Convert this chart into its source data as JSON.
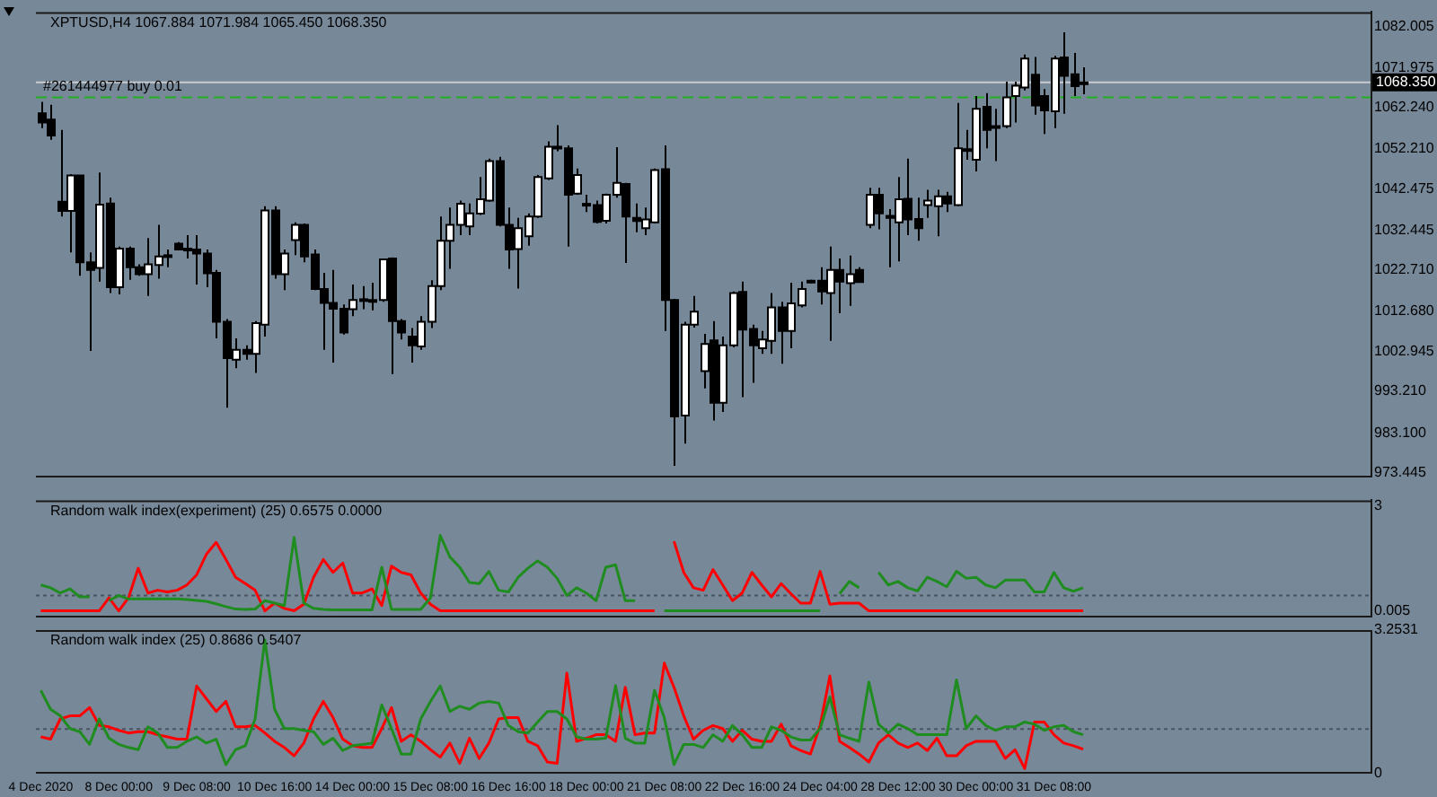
{
  "chart_data": [
    {
      "type": "candlestick",
      "title": "XPTUSD,H4 1067.884 1071.984 1065.450 1068.350",
      "tick_labels": "y",
      "categories": [
        null,
        null,
        null,
        null,
        null,
        null,
        null,
        null,
        null,
        null,
        null,
        null,
        null,
        null,
        null,
        null,
        null,
        null,
        null,
        null,
        null,
        null,
        null,
        null,
        null,
        null,
        null,
        null,
        null,
        null,
        null,
        null,
        null,
        null,
        null,
        null,
        null,
        null,
        null,
        null,
        null,
        null,
        null,
        null,
        null,
        null,
        null,
        null,
        null,
        null,
        null,
        null,
        null,
        null,
        null,
        null,
        null,
        null,
        null,
        null,
        null,
        null,
        null,
        null,
        null,
        null,
        null,
        null,
        null,
        null,
        null,
        null,
        null,
        null,
        null,
        null,
        null,
        null,
        null,
        null,
        null,
        null,
        null,
        null,
        null,
        null,
        null,
        null,
        null,
        null,
        null,
        null,
        null,
        null,
        null,
        null,
        null,
        null,
        null,
        null,
        null,
        null,
        null,
        null,
        null,
        null,
        null,
        null,
        null,
        null,
        null,
        null,
        null,
        null,
        null,
        null,
        null,
        null,
        null,
        null,
        null,
        null,
        null,
        null,
        null,
        null,
        null,
        null,
        null,
        null,
        null,
        null,
        null,
        null,
        null,
        null,
        null
      ],
      "ohlc": [
        [
          1060.8,
          1063.6,
          1057.2,
          1058.6
        ],
        [
          1059.3,
          1062.9,
          1054.4,
          1055.4
        ],
        [
          1039.3,
          1056.8,
          1035.7,
          1037.1
        ],
        [
          1037.1,
          1046.0,
          1027.0,
          1045.7
        ],
        [
          1045.7,
          1045.7,
          1021.3,
          1024.6
        ],
        [
          1024.6,
          1027.0,
          1003.0,
          1022.7
        ],
        [
          1023.2,
          1046.4,
          1019.9,
          1038.6
        ],
        [
          1038.9,
          1040.3,
          1017.1,
          1018.5
        ],
        [
          1018.5,
          1028.4,
          1016.8,
          1027.9
        ],
        [
          1027.9,
          1028.4,
          1020.3,
          1023.4
        ],
        [
          1023.4,
          1024.1,
          1021.3,
          1021.7
        ],
        [
          1021.7,
          1030.5,
          1016.4,
          1024.1
        ],
        [
          1023.9,
          1033.7,
          1020.6,
          1026.0
        ],
        [
          1026.0,
          1027.7,
          1023.4,
          1026.3
        ],
        [
          1029.1,
          1029.5,
          1027.7,
          1027.7
        ],
        [
          1027.9,
          1031.2,
          1025.5,
          1027.6
        ],
        [
          1027.7,
          1031.2,
          1019.2,
          1026.7
        ],
        [
          1026.7,
          1027.7,
          1018.5,
          1021.9
        ],
        [
          1022.0,
          1022.7,
          1006.1,
          1010.1
        ],
        [
          1010.1,
          1010.8,
          989.2,
          1001.3
        ],
        [
          1000.9,
          1006.1,
          998.8,
          1003.3
        ],
        [
          1003.3,
          1004.4,
          1000.9,
          1002.3
        ],
        [
          1002.3,
          1010.3,
          997.7,
          1009.8
        ],
        [
          1009.4,
          1038.2,
          1006.5,
          1037.2
        ],
        [
          1037.2,
          1038.2,
          1020.6,
          1021.7
        ],
        [
          1021.7,
          1027.7,
          1017.8,
          1026.7
        ],
        [
          1030.0,
          1034.3,
          1026.3,
          1033.7
        ],
        [
          1033.7,
          1034.0,
          1024.6,
          1026.0
        ],
        [
          1026.5,
          1027.7,
          1017.8,
          1018.1
        ],
        [
          1018.1,
          1022.0,
          1003.3,
          1014.7
        ],
        [
          1014.7,
          1022.7,
          1000.2,
          1013.3
        ],
        [
          1013.3,
          1014.3,
          1007.0,
          1007.5
        ],
        [
          1013.2,
          1019.2,
          1011.5,
          1015.4
        ],
        [
          1015.4,
          1018.8,
          1013.2,
          1015.6
        ],
        [
          1015.4,
          1019.6,
          1012.9,
          1015.2
        ],
        [
          1015.4,
          1025.5,
          1015.0,
          1025.3
        ],
        [
          1025.5,
          1025.8,
          997.4,
          1010.3
        ],
        [
          1010.3,
          1010.8,
          1005.8,
          1007.5
        ],
        [
          1006.5,
          1008.6,
          1000.2,
          1004.4
        ],
        [
          1004.1,
          1011.5,
          1003.3,
          1010.1
        ],
        [
          1010.1,
          1020.2,
          1008.6,
          1018.8
        ],
        [
          1018.8,
          1035.7,
          1017.8,
          1029.8
        ],
        [
          1029.8,
          1037.9,
          1023.0,
          1033.7
        ],
        [
          1033.7,
          1039.6,
          1031.2,
          1038.8
        ],
        [
          1033.3,
          1038.9,
          1031.2,
          1036.5
        ],
        [
          1036.4,
          1045.3,
          1036.1,
          1039.9
        ],
        [
          1039.6,
          1049.8,
          1039.3,
          1049.2
        ],
        [
          1049.2,
          1050.2,
          1033.3,
          1033.7
        ],
        [
          1033.7,
          1037.9,
          1023.0,
          1027.7
        ],
        [
          1027.8,
          1035.4,
          1018.2,
          1032.9
        ],
        [
          1030.9,
          1036.5,
          1028.6,
          1035.7
        ],
        [
          1035.7,
          1045.8,
          1035.4,
          1045.3
        ],
        [
          1045.0,
          1054.0,
          1044.6,
          1052.7
        ],
        [
          1052.7,
          1057.9,
          1051.6,
          1052.5
        ],
        [
          1052.3,
          1053.0,
          1028.4,
          1041.0
        ],
        [
          1041.3,
          1047.4,
          1041.0,
          1045.8
        ],
        [
          1038.6,
          1041.0,
          1036.8,
          1038.8
        ],
        [
          1038.5,
          1039.6,
          1034.0,
          1034.4
        ],
        [
          1034.7,
          1041.3,
          1034.0,
          1041.0
        ],
        [
          1041.0,
          1052.6,
          1040.3,
          1043.9
        ],
        [
          1043.6,
          1043.9,
          1024.4,
          1035.7
        ],
        [
          1035.4,
          1038.9,
          1031.9,
          1034.6
        ],
        [
          1032.9,
          1037.9,
          1031.2,
          1035.0
        ],
        [
          1034.3,
          1047.4,
          1034.0,
          1047.0
        ],
        [
          1047.2,
          1053.0,
          1007.9,
          1015.4
        ],
        [
          1015.4,
          1015.7,
          975.1,
          987.1
        ],
        [
          987.3,
          1010.1,
          980.5,
          1009.4
        ],
        [
          1009.4,
          1016.4,
          1008.7,
          1012.6
        ],
        [
          998.1,
          1007.2,
          993.9,
          1004.7
        ],
        [
          1005.6,
          1010.3,
          986.1,
          990.4
        ],
        [
          990.4,
          1006.5,
          988.2,
          1004.4
        ],
        [
          1004.4,
          1017.5,
          1003.9,
          1017.1
        ],
        [
          1017.4,
          1019.9,
          991.8,
          1008.2
        ],
        [
          1008.4,
          1009.4,
          995.3,
          1004.4
        ],
        [
          1003.7,
          1007.9,
          1002.3,
          1005.8
        ],
        [
          1005.5,
          1017.1,
          1002.3,
          1013.6
        ],
        [
          1013.6,
          1015.0,
          999.9,
          1007.9
        ],
        [
          1007.9,
          1019.6,
          1003.7,
          1014.6
        ],
        [
          1014.1,
          1019.9,
          1013.6,
          1018.1
        ],
        [
          1020.0,
          1020.3,
          1019.5,
          1020.1
        ],
        [
          1020.1,
          1023.4,
          1014.3,
          1017.5
        ],
        [
          1017.1,
          1028.4,
          1005.5,
          1022.7
        ],
        [
          1022.7,
          1025.5,
          1012.2,
          1019.9
        ],
        [
          1019.5,
          1026.2,
          1014.0,
          1021.7
        ],
        [
          1022.7,
          1023.4,
          1019.6,
          1019.8
        ],
        [
          1033.7,
          1042.7,
          1032.9,
          1041.0
        ],
        [
          1041.0,
          1042.7,
          1032.6,
          1036.5
        ],
        [
          1035.9,
          1037.5,
          1023.4,
          1035.4
        ],
        [
          1034.3,
          1045.3,
          1024.8,
          1039.9
        ],
        [
          1040.0,
          1049.8,
          1031.2,
          1035.0
        ],
        [
          1035.1,
          1040.3,
          1029.8,
          1032.9
        ],
        [
          1038.5,
          1042.2,
          1035.4,
          1039.6
        ],
        [
          1038.2,
          1042.2,
          1030.9,
          1040.6
        ],
        [
          1040.6,
          1041.7,
          1036.8,
          1038.9
        ],
        [
          1038.5,
          1063.3,
          1038.2,
          1052.3
        ],
        [
          1052.0,
          1056.8,
          1049.5,
          1052.1
        ],
        [
          1049.5,
          1065.0,
          1046.7,
          1061.9
        ],
        [
          1062.4,
          1065.7,
          1052.3,
          1056.8
        ],
        [
          1057.7,
          1061.9,
          1049.2,
          1057.6
        ],
        [
          1057.7,
          1068.5,
          1057.2,
          1064.7
        ],
        [
          1065.0,
          1068.5,
          1058.6,
          1067.5
        ],
        [
          1067.1,
          1075.1,
          1066.4,
          1074.1
        ],
        [
          1070.2,
          1074.5,
          1060.5,
          1062.7
        ],
        [
          1065.0,
          1066.7,
          1055.8,
          1061.5
        ],
        [
          1061.3,
          1074.8,
          1057.2,
          1074.1
        ],
        [
          1074.4,
          1080.5,
          1060.7,
          1069.9
        ],
        [
          1070.3,
          1075.5,
          1065.0,
          1067.4
        ],
        [
          1067.884,
          1071.984,
          1065.45,
          1068.35
        ],
        null,
        null,
        null,
        null,
        null,
        null,
        null,
        null,
        null,
        null,
        null,
        null,
        null,
        null,
        null,
        null,
        null,
        null,
        null,
        null,
        null,
        null,
        null,
        null,
        null,
        null,
        null,
        null,
        null
      ],
      "ylim": [
        972.6,
        1085.4
      ],
      "yticks": [
        1082.005,
        1071.975,
        {
          "value": 1062.24,
          "label": "1062.240"
        },
        {
          "value": 1052.21,
          "label": "1052.210"
        },
        1042.475,
        1032.445,
        {
          "value": 1022.71,
          "label": "1022.710"
        },
        {
          "value": 1012.68,
          "label": "1012.680"
        },
        1002.945,
        {
          "value": 993.21,
          "label": "993.210"
        },
        {
          "value": 983.1,
          "label": "983.100"
        },
        973.445
      ],
      "ref_lines": [
        {
          "axis": "y",
          "value": 1068.35,
          "label": "1068.350",
          "color": "#c8ccd2",
          "line_style": "solid"
        },
        {
          "axis": "y",
          "value": 1064.7,
          "label": "#261444977 buy 0.01",
          "color": "#22b022",
          "line_style": "dashed"
        }
      ]
    },
    {
      "type": "line",
      "title": "Random walk index(experiment) (25) 0.6575 0.0000",
      "tick_labels": "y",
      "categories": [
        null,
        null,
        null,
        null,
        null,
        null,
        null,
        null,
        null,
        null,
        null,
        null,
        null,
        null,
        null,
        null,
        null,
        null,
        null,
        null,
        null,
        null,
        null,
        null,
        null,
        null,
        null,
        null,
        null,
        null,
        null,
        null,
        null,
        null,
        null,
        null,
        null,
        null,
        null,
        null,
        null,
        null,
        null,
        null,
        null,
        null,
        null,
        null,
        null,
        null,
        null,
        null,
        null,
        null,
        null,
        null,
        null,
        null,
        null,
        null,
        null,
        null,
        null,
        null,
        null,
        null,
        null,
        null,
        null,
        null,
        null,
        null,
        null,
        null,
        null,
        null,
        null,
        null,
        null,
        null,
        null,
        null,
        null,
        null,
        null,
        null,
        null,
        null,
        null,
        null,
        null,
        null,
        null,
        null,
        null,
        null,
        null,
        null,
        null,
        null,
        null,
        null,
        null,
        null,
        null,
        null,
        null,
        null,
        null,
        null,
        null,
        null,
        null,
        null,
        null,
        null,
        null,
        null,
        null,
        null,
        null,
        null,
        null,
        null,
        null,
        null,
        null,
        null,
        null,
        null,
        null,
        null,
        null,
        null,
        null,
        null,
        null
      ],
      "series": [
        {
          "color": "#1e8c1e",
          "values": [
            0.74,
            0.66,
            0.51,
            0.63,
            0.4,
            0.4,
            null,
            0.29,
            0.44,
            0.34,
            0.34,
            0.34,
            0.34,
            0.34,
            0.34,
            0.32,
            0.3,
            0.27,
            0.2,
            0.12,
            0.05,
            0.04,
            0.05,
            0.29,
            0.22,
            0.15,
            2.1,
            0.22,
            0.07,
            0.04,
            0.03,
            0.03,
            0.03,
            0.03,
            0.03,
            1.25,
            0.04,
            0.04,
            0.04,
            0.04,
            0.37,
            2.16,
            1.54,
            1.25,
            0.81,
            0.78,
            1.13,
            0.59,
            0.54,
            0.96,
            1.22,
            1.43,
            1.25,
            0.93,
            0.44,
            0.66,
            0.51,
            0.29,
            1.25,
            1.32,
            0.29,
            0.29,
            null,
            null,
            0,
            0,
            0,
            0,
            0,
            0,
            0,
            0,
            0,
            0,
            0,
            0,
            0,
            0,
            0,
            0,
            0,
            null,
            0.49,
            0.84,
            0.66,
            null,
            1.1,
            0.74,
            0.84,
            0.66,
            0.57,
            0.96,
            0.84,
            0.69,
            1.13,
            0.93,
            0.96,
            0.74,
            0.66,
            0.88,
            0.88,
            0.88,
            0.54,
            0.54,
            1.1,
            0.66,
            0.56,
            0.66,
            null,
            null,
            null,
            null,
            null,
            null,
            null,
            null,
            null,
            null,
            null,
            null,
            null,
            null,
            null,
            null,
            null,
            null,
            null,
            null,
            null,
            null,
            null,
            null,
            null,
            null,
            null,
            null,
            null
          ]
        },
        {
          "color": "#ff0000",
          "values": [
            0,
            0,
            0,
            0,
            0,
            0,
            0,
            0.37,
            0,
            0.37,
            1.22,
            0.51,
            0.59,
            0.54,
            0.59,
            0.74,
            1.03,
            1.62,
            1.96,
            1.47,
            0.96,
            0.78,
            0.59,
            0,
            0.22,
            0.07,
            0,
            0.19,
            0.96,
            1.47,
            1.1,
            1.37,
            0.51,
            0.51,
            0.63,
            0.15,
            1.28,
            1.1,
            1.03,
            0.51,
            0.19,
            0,
            0,
            0,
            0,
            0,
            0,
            0,
            0,
            0,
            0,
            0,
            0,
            0,
            0,
            0,
            0,
            0,
            0,
            0,
            0,
            0,
            0,
            0,
            null,
            1.99,
            1.1,
            0.66,
            0.59,
            1.18,
            0.74,
            0.29,
            0.51,
            1.1,
            0.74,
            0.4,
            0.78,
            0.49,
            0.22,
            0.22,
            1.13,
            0.19,
            0.22,
            0.22,
            0.22,
            0,
            0,
            0,
            0,
            0,
            0,
            0,
            0,
            0,
            0,
            0,
            0,
            0,
            0,
            0,
            0,
            0,
            0,
            0,
            0,
            0,
            0,
            0,
            null,
            null,
            null,
            null,
            null,
            null,
            null,
            null,
            null,
            null,
            null,
            null,
            null,
            null,
            null,
            null,
            null,
            null,
            null,
            null,
            null,
            null,
            null,
            null,
            null,
            null,
            null,
            null,
            null
          ]
        }
      ],
      "ylim": [
        -0.15,
        3.16
      ],
      "yticks": [
        3,
        0.005
      ],
      "ref_lines": [
        {
          "axis": "y",
          "value": 0.44,
          "color": "#4a5460",
          "line_style": "dotted"
        }
      ]
    },
    {
      "type": "line",
      "title": "Random walk index (25) 0.8686 0.5407",
      "categories": [
        "4 Dec 2020",
        null,
        null,
        null,
        null,
        null,
        null,
        null,
        "8 Dec 00:00",
        null,
        null,
        null,
        null,
        null,
        null,
        null,
        "9 Dec 08:00",
        null,
        null,
        null,
        null,
        null,
        null,
        null,
        "10 Dec 16:00",
        null,
        null,
        null,
        null,
        null,
        null,
        null,
        "14 Dec 00:00",
        null,
        null,
        null,
        null,
        null,
        null,
        null,
        "15 Dec 08:00",
        null,
        null,
        null,
        null,
        null,
        null,
        null,
        "16 Dec 16:00",
        null,
        null,
        null,
        null,
        null,
        null,
        null,
        "18 Dec 00:00",
        null,
        null,
        null,
        null,
        null,
        null,
        null,
        "21 Dec 08:00",
        null,
        null,
        null,
        null,
        null,
        null,
        null,
        "22 Dec 16:00",
        null,
        null,
        null,
        null,
        null,
        null,
        null,
        "24 Dec 04:00",
        null,
        null,
        null,
        null,
        null,
        null,
        null,
        "28 Dec 12:00",
        null,
        null,
        null,
        null,
        null,
        null,
        null,
        "30 Dec 00:00",
        null,
        null,
        null,
        null,
        null,
        null,
        null,
        "31 Dec 08:00",
        null,
        null,
        null,
        null,
        null,
        null,
        null,
        null,
        null,
        null,
        null,
        null,
        null,
        null,
        null,
        null,
        null,
        null,
        null,
        null,
        null,
        null,
        null,
        null,
        null,
        null,
        null,
        null,
        null,
        null,
        null,
        null
      ],
      "series": [
        {
          "color": "#1e8c1e",
          "values": [
            1.88,
            1.45,
            1.3,
            1.01,
            0.94,
            0.65,
            1.23,
            0.79,
            0.65,
            0.58,
            0.53,
            1.05,
            0.91,
            0.58,
            0.58,
            0.72,
            0.82,
            0.68,
            0.77,
            0.19,
            0.53,
            0.62,
            1.23,
            3.03,
            1.45,
            1.01,
            1.01,
            0.97,
            0.94,
            0.65,
            0.79,
            0.51,
            0.62,
            0.65,
            0.68,
            1.55,
            1.01,
            0.43,
            0.43,
            1.23,
            1.63,
            1.98,
            1.4,
            1.52,
            1.45,
            1.59,
            1.63,
            1.59,
            1.08,
            0.94,
            0.91,
            1.16,
            1.4,
            1.4,
            1.23,
            0.82,
            0.77,
            0.77,
            0.79,
            1.99,
            0.79,
            0.68,
            0.68,
            1.88,
            1.26,
            0.19,
            0.65,
            0.65,
            0.58,
            0.87,
            0.72,
            1.08,
            0.87,
            0.58,
            0.58,
            1.05,
            0.97,
            0.82,
            0.75,
            0.75,
            1.01,
            1.73,
            0.87,
            0.79,
            0.72,
            2.07,
            1.11,
            0.91,
            1.11,
            1.01,
            0.87,
            0.87,
            0.87,
            0.87,
            2.12,
            1.01,
            1.3,
            1.08,
            0.97,
            1.05,
            1.05,
            1.16,
            1.11,
            0.97,
            1.05,
            1.08,
            0.94,
            0.87,
            null,
            null,
            null,
            null,
            null,
            null,
            null,
            null,
            null,
            null,
            null,
            null,
            null,
            null,
            null,
            null,
            null,
            null,
            null,
            null,
            null,
            null,
            null,
            null,
            null,
            null,
            null,
            null,
            null
          ]
        },
        {
          "color": "#ff0000",
          "values": [
            0.82,
            0.77,
            1.23,
            1.3,
            1.3,
            1.49,
            1.08,
            1.05,
            0.97,
            0.91,
            0.94,
            0.94,
            0.87,
            0.82,
            0.77,
            0.77,
            1.98,
            1.69,
            1.4,
            1.63,
            1.05,
            1.05,
            1.08,
            0.91,
            0.72,
            0.58,
            0.39,
            0.68,
            1.23,
            1.63,
            1.26,
            0.77,
            0.62,
            0.58,
            0.58,
            1.01,
            1.49,
            0.72,
            0.87,
            0.72,
            0.53,
            0.36,
            0.68,
            0.22,
            0.79,
            0.33,
            0.68,
            1.23,
            1.26,
            1.26,
            0.72,
            0.62,
            0.25,
            0.22,
            2.27,
            0.72,
            0.79,
            0.87,
            0.87,
            0.72,
            1.95,
            0.87,
            0.91,
            0.91,
            2.5,
            1.95,
            1.3,
            0.77,
            0.97,
            1.08,
            1.01,
            0.72,
            0.97,
            0.77,
            0.72,
            0.72,
            1.11,
            0.62,
            0.51,
            0.43,
            1.08,
            2.21,
            0.72,
            0.58,
            0.43,
            0.25,
            0.68,
            0.87,
            0.68,
            0.58,
            0.68,
            0.51,
            0.79,
            0.39,
            0.39,
            0.62,
            0.72,
            0.72,
            0.72,
            0.33,
            0.53,
            0.1,
            1.16,
            1.16,
            0.87,
            0.68,
            0.62,
            0.54,
            null,
            null,
            null,
            null,
            null,
            null,
            null,
            null,
            null,
            null,
            null,
            null,
            null,
            null,
            null,
            null,
            null,
            null,
            null,
            null,
            null,
            null,
            null,
            null,
            null,
            null,
            null,
            null,
            null
          ]
        }
      ],
      "ylim": [
        0,
        3.2531
      ],
      "yticks": [
        3.2531,
        0
      ],
      "ref_lines": [
        {
          "axis": "y",
          "value": 1,
          "color": "#4a5460",
          "line_style": "dotted"
        }
      ]
    }
  ]
}
